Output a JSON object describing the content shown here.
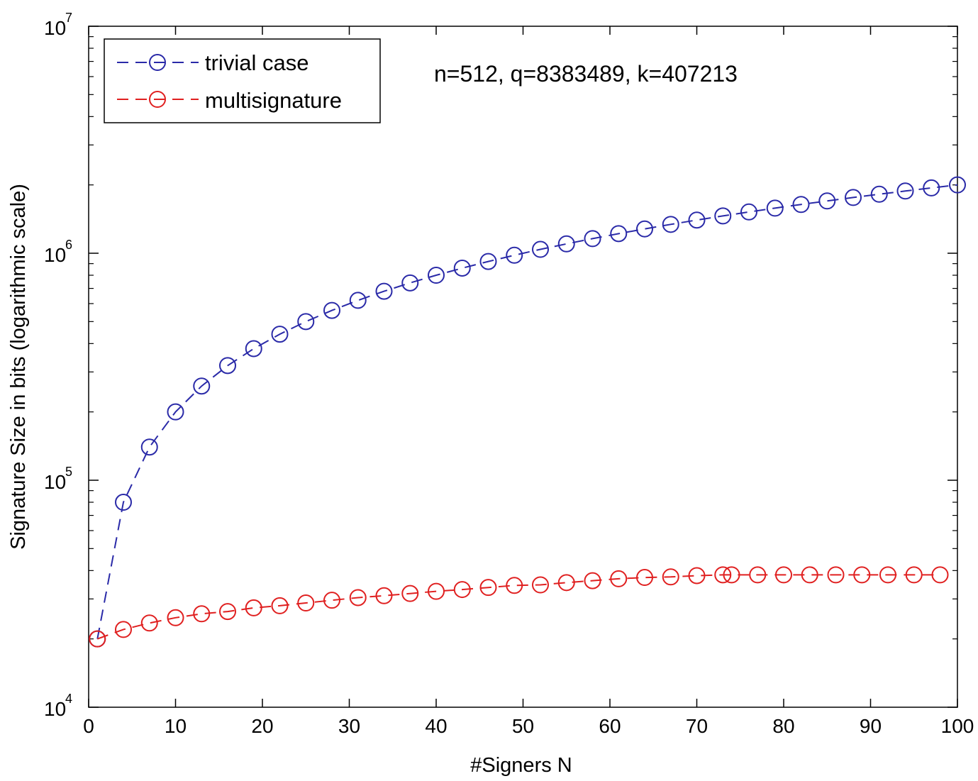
{
  "chart_data": {
    "type": "line",
    "title": "",
    "xlabel": "#Signers N",
    "ylabel": "Signature Size in bits (logarithmic scale)",
    "yscale": "log",
    "xlim": [
      0,
      100
    ],
    "ylim": [
      10000,
      10000000
    ],
    "xticks": [
      0,
      10,
      20,
      30,
      40,
      50,
      60,
      70,
      80,
      90,
      100
    ],
    "yticks": [
      {
        "base": "10",
        "exp": "4",
        "value": 10000
      },
      {
        "base": "10",
        "exp": "5",
        "value": 100000
      },
      {
        "base": "10",
        "exp": "6",
        "value": 1000000
      },
      {
        "base": "10",
        "exp": "7",
        "value": 10000000
      }
    ],
    "grid": false,
    "legend_position": "top-left",
    "annotation": "n=512, q=8383489, k=407213",
    "series": [
      {
        "name": "trivial case",
        "color": "#2a2aa8",
        "marker": "circle",
        "linestyle": "dashed",
        "x": [
          1,
          4,
          7,
          10,
          13,
          16,
          19,
          22,
          25,
          28,
          31,
          34,
          37,
          40,
          43,
          46,
          49,
          52,
          55,
          58,
          61,
          64,
          67,
          70,
          73,
          76,
          79,
          82,
          85,
          88,
          91,
          94,
          97,
          100
        ],
        "y": [
          20000,
          80000,
          140000,
          200000,
          260000,
          320000,
          380000,
          440000,
          500000,
          560000,
          620000,
          680000,
          740000,
          800000,
          860000,
          920000,
          980000,
          1040000,
          1100000,
          1160000,
          1220000,
          1280000,
          1340000,
          1400000,
          1460000,
          1520000,
          1580000,
          1640000,
          1700000,
          1760000,
          1820000,
          1880000,
          1940000,
          2000000
        ]
      },
      {
        "name": "multisignature",
        "color": "#e02020",
        "marker": "circle",
        "linestyle": "dashed",
        "x": [
          1,
          4,
          7,
          10,
          13,
          16,
          19,
          22,
          25,
          28,
          31,
          34,
          37,
          40,
          43,
          46,
          49,
          52,
          55,
          58,
          61,
          64,
          67,
          70,
          73,
          74,
          77,
          80,
          83,
          86,
          89,
          92,
          95,
          98
        ],
        "y": [
          20000,
          22000,
          23500,
          24800,
          25800,
          26400,
          27400,
          28000,
          28800,
          29600,
          30400,
          31000,
          31700,
          32400,
          33000,
          33700,
          34400,
          34600,
          35400,
          36100,
          36800,
          37300,
          37500,
          38000,
          38300,
          38300,
          38300,
          38300,
          38300,
          38300,
          38300,
          38300,
          38300,
          38300
        ]
      }
    ]
  }
}
